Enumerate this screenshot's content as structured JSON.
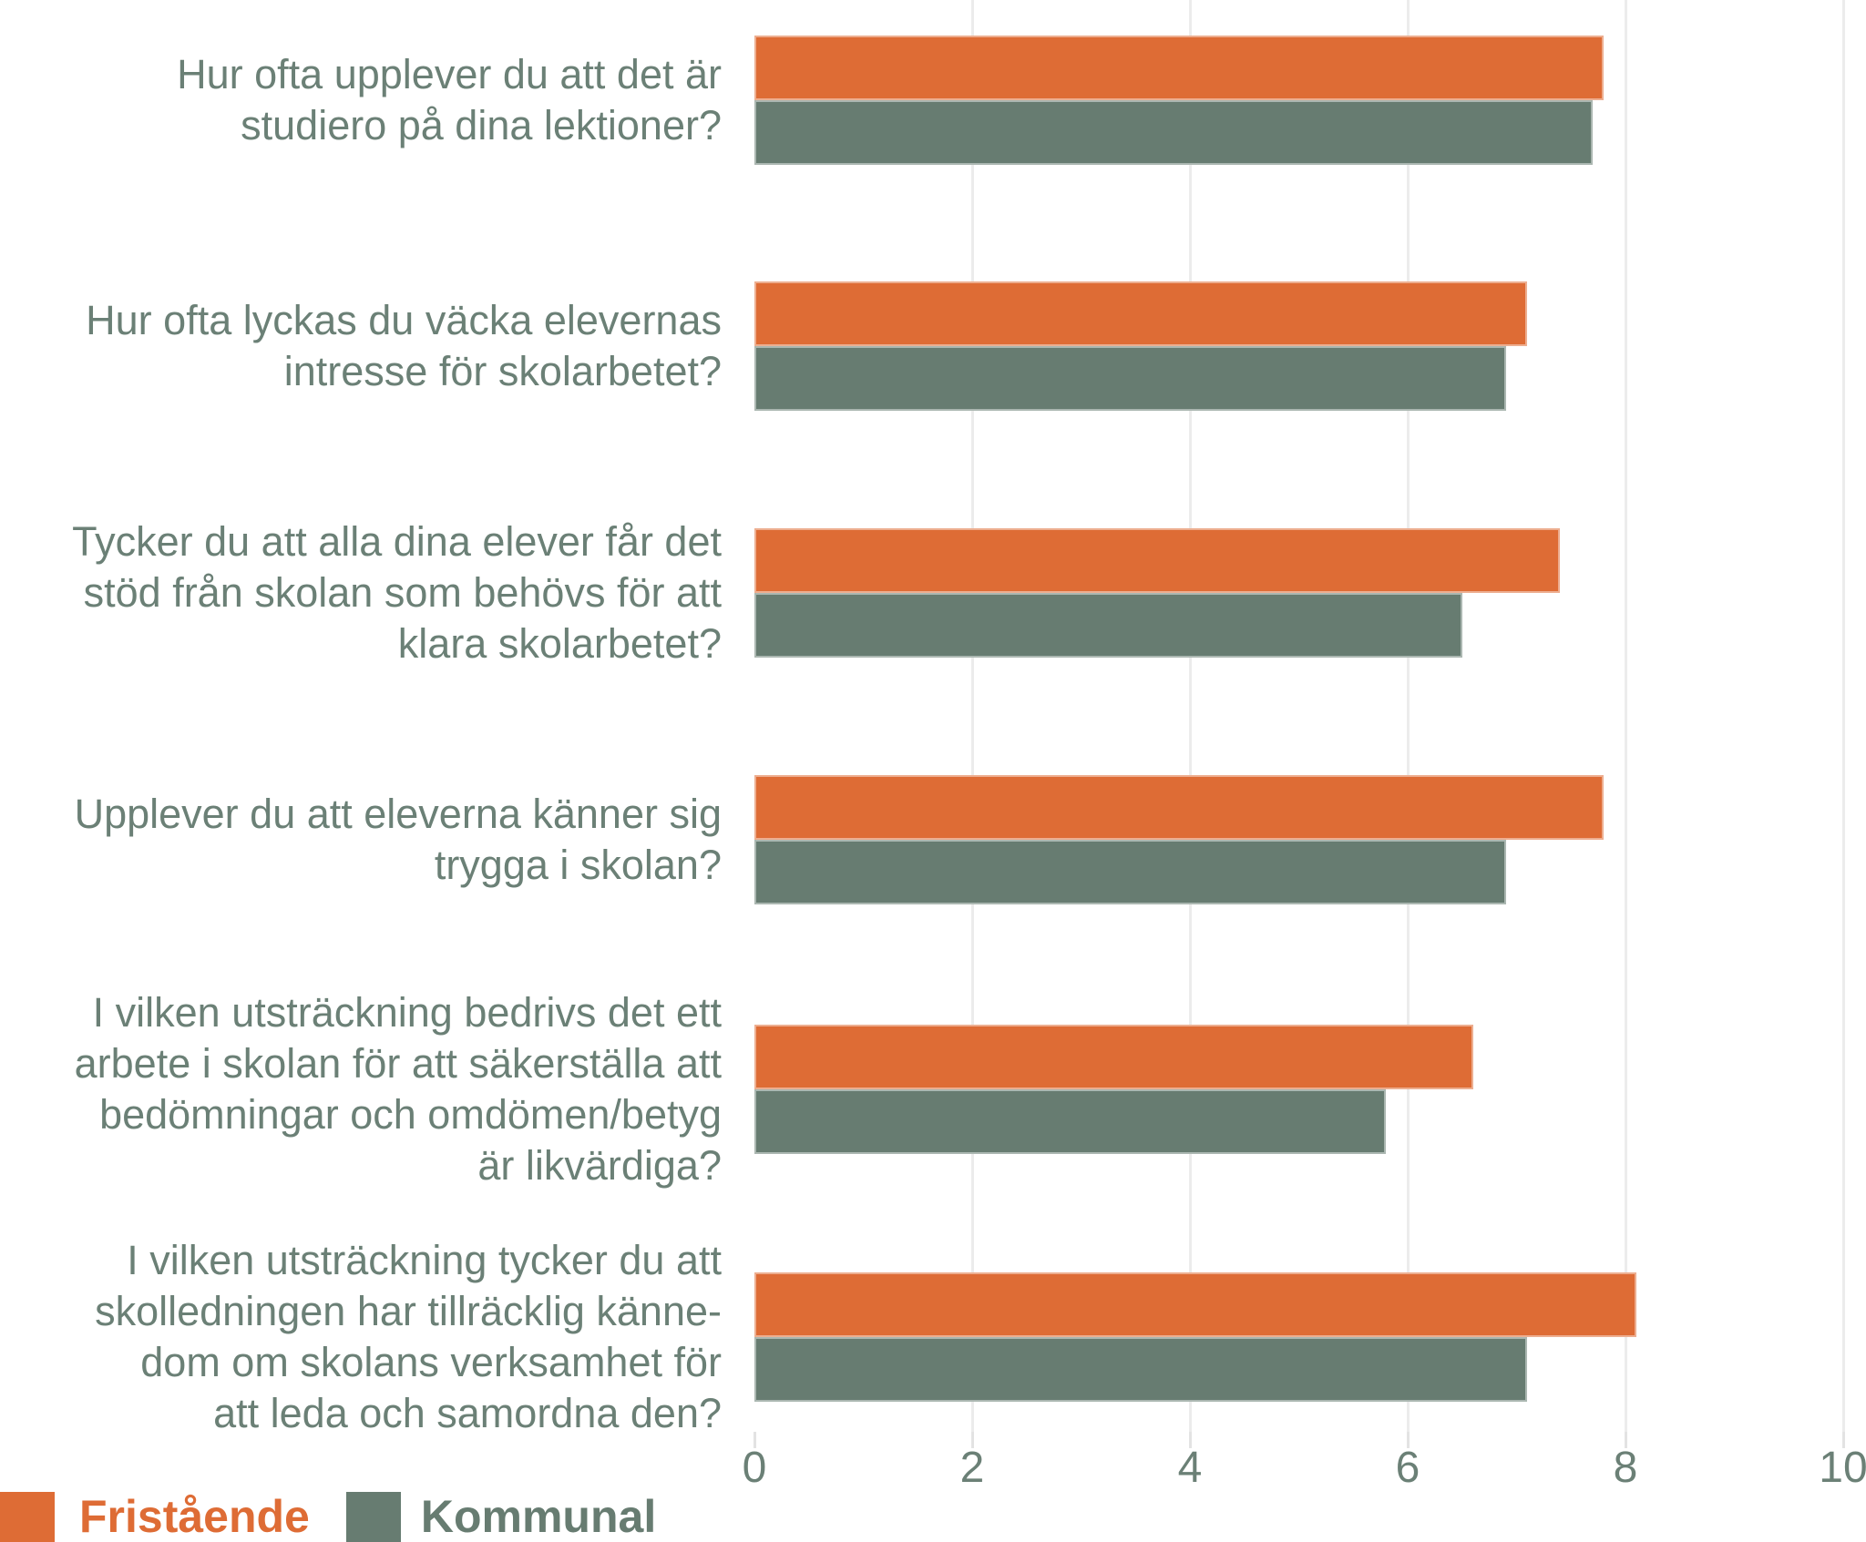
{
  "chart_data": {
    "type": "bar",
    "orientation": "horizontal",
    "title": "",
    "xlabel": "",
    "ylabel": "",
    "xlim": [
      0,
      10
    ],
    "x_ticks": [
      0,
      2,
      4,
      6,
      8,
      10
    ],
    "grid": true,
    "legend_position": "bottom-left",
    "categories": [
      "Hur ofta upplever du att det är\nstudiero på dina lektioner?",
      "Hur ofta lyckas du väcka elevernas\nintresse för skolarbetet?",
      "Tycker du att alla dina elever får det\nstöd från skolan som behövs för att\nklara skolarbetet?",
      "Upplever du att eleverna känner sig\ntrygga i skolan?",
      "I vilken utsträckning bedrivs det ett\narbete i skolan för att säkerställa att\nbedömningar och omdömen/betyg\när likvärdiga?",
      "I vilken utsträckning tycker du att\nskolledningen har tillräcklig känne-\ndom om skolans verksamhet för\natt leda och samordna den?"
    ],
    "series": [
      {
        "name": "Fristående",
        "color": "#de6c35",
        "values": [
          7.8,
          7.1,
          7.4,
          7.8,
          6.6,
          8.1
        ]
      },
      {
        "name": "Kommunal",
        "color": "#677c71",
        "values": [
          7.7,
          6.9,
          6.5,
          6.9,
          5.8,
          7.1
        ]
      }
    ],
    "tick_labels": [
      "0",
      "2",
      "4",
      "6",
      "8",
      "10"
    ],
    "colors": {
      "label_text": "#6b8076",
      "gridline": "#ececec",
      "background": "#ffffff"
    }
  }
}
